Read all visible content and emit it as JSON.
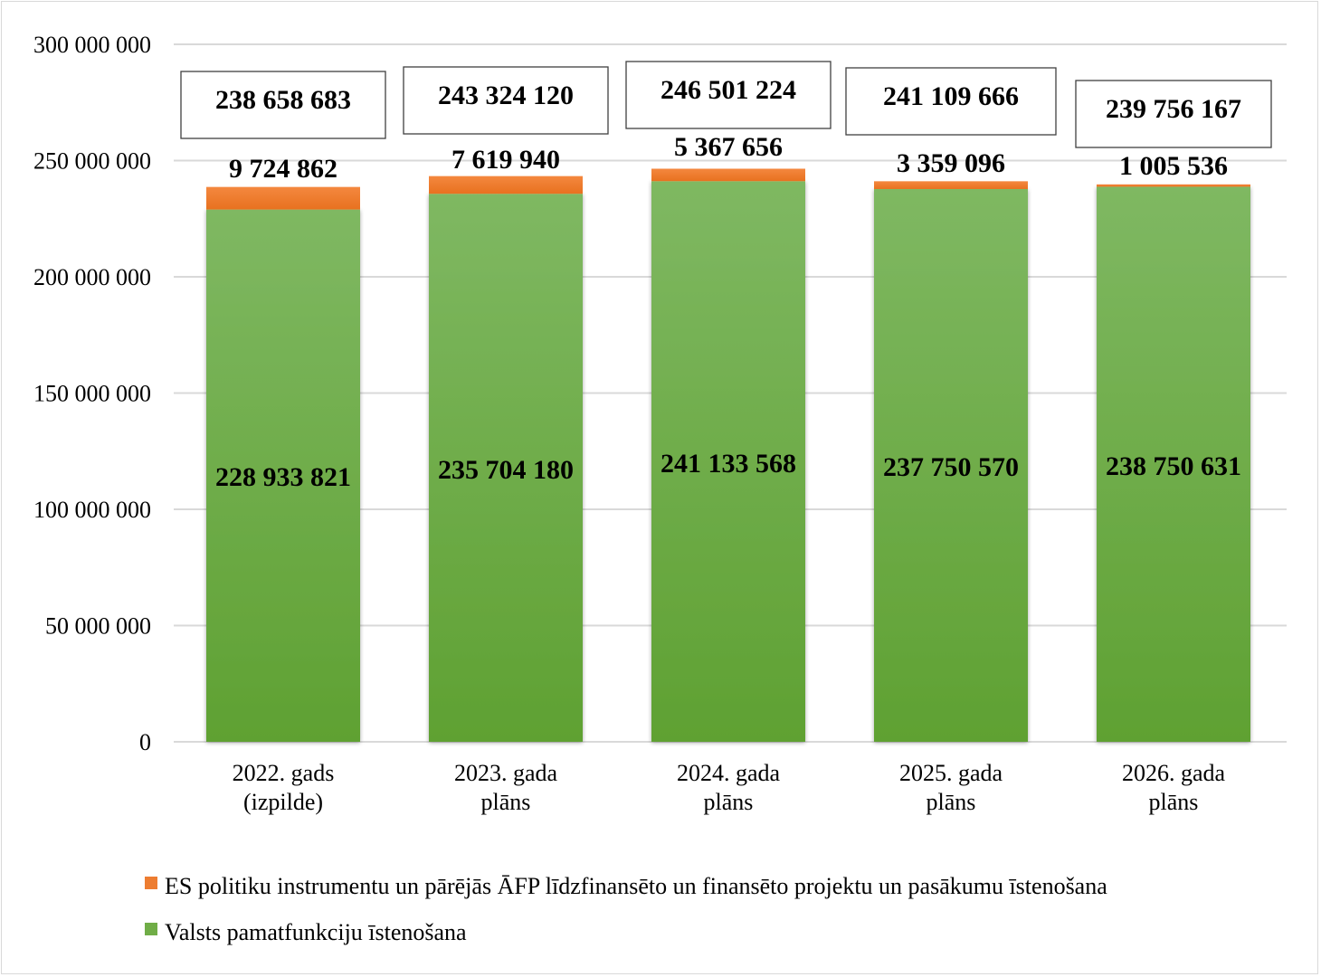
{
  "chart_data": {
    "type": "bar",
    "stacked": true,
    "title": "",
    "xlabel": "",
    "ylabel": "",
    "ylim": [
      0,
      300000000
    ],
    "yticks": [
      0,
      50000000,
      100000000,
      150000000,
      200000000,
      250000000,
      300000000
    ],
    "ytick_labels": [
      "0",
      "50 000 000",
      "100 000 000",
      "150 000 000",
      "200 000 000",
      "250 000 000",
      "300 000 000"
    ],
    "grid": true,
    "legend_position": "bottom-left",
    "categories": [
      [
        "2022. gads",
        "(izpilde)"
      ],
      [
        "2023. gada",
        "plāns"
      ],
      [
        "2024. gada",
        "plāns"
      ],
      [
        "2025. gada",
        "plāns"
      ],
      [
        "2026. gada",
        "plāns"
      ]
    ],
    "series": [
      {
        "name": "Valsts pamatfunkciju īstenošana",
        "color": "#70ad47",
        "values": [
          228933821,
          235704180,
          241133568,
          237750570,
          238750631
        ],
        "labels": [
          "228 933 821",
          "235 704 180",
          "241 133 568",
          "237 750 570",
          "238 750 631"
        ]
      },
      {
        "name": "ES politiku instrumentu un pārējās ĀFP līdzfinansēto un finansēto projektu un pasākumu īstenošana",
        "color": "#ed7d31",
        "values": [
          9724862,
          7619940,
          5367656,
          3359096,
          1005536
        ],
        "labels": [
          "9 724 862",
          "7 619 940",
          "5 367 656",
          "3 359 096",
          "1 005 536"
        ]
      }
    ],
    "totals": [
      238658683,
      243324120,
      246501224,
      241109666,
      239756167
    ],
    "total_labels": [
      "238 658 683",
      "243 324 120",
      "246 501 224",
      "241 109 666",
      "239 756 167"
    ],
    "legend": [
      {
        "name": "ES politiku instrumentu un pārējās ĀFP līdzfinansēto un finansēto projektu un pasākumu īstenošana",
        "color": "#ed7d31"
      },
      {
        "name": "Valsts pamatfunkciju īstenošana",
        "color": "#70ad47"
      }
    ]
  }
}
